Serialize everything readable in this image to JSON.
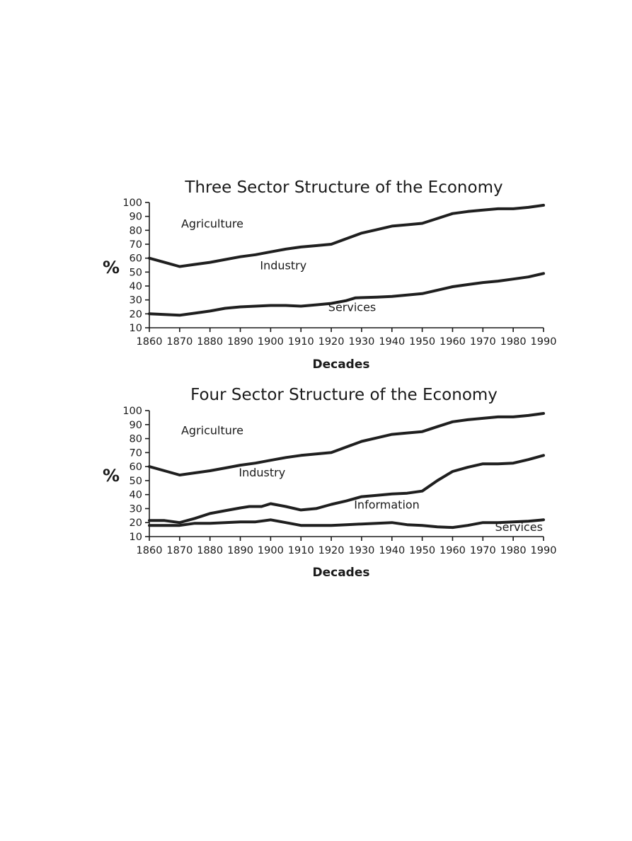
{
  "chart_data": [
    {
      "type": "line",
      "title": "Three Sector Structure of the Economy",
      "xlabel": "Decades",
      "ylabel": "%",
      "xlim": [
        1860,
        1990
      ],
      "ylim": [
        10,
        100
      ],
      "x_ticks": [
        "1860",
        "1870",
        "1880",
        "1890",
        "1900",
        "1910",
        "1920",
        "1930",
        "1940",
        "1950",
        "1960",
        "1970",
        "1980",
        "1990"
      ],
      "y_ticks": [
        "10",
        "20",
        "30",
        "40",
        "50",
        "60",
        "70",
        "80",
        "90",
        "100"
      ],
      "grid": false,
      "region_labels": [
        {
          "text": "Agriculture",
          "x": 1870.5,
          "y": 82
        },
        {
          "text": "Industry",
          "x": 1896.5,
          "y": 52
        },
        {
          "text": "Services",
          "x": 1919,
          "y": 22
        }
      ],
      "series": [
        {
          "values": [
            [
              1860,
              60
            ],
            [
              1865,
              57
            ],
            [
              1870,
              54
            ],
            [
              1875,
              55.5
            ],
            [
              1880,
              57
            ],
            [
              1885,
              59
            ],
            [
              1890,
              61
            ],
            [
              1895,
              62.5
            ],
            [
              1900,
              64.5
            ],
            [
              1905,
              66.5
            ],
            [
              1910,
              68
            ],
            [
              1915,
              69
            ],
            [
              1920,
              70
            ],
            [
              1925,
              74
            ],
            [
              1930,
              78
            ],
            [
              1935,
              80.5
            ],
            [
              1940,
              83
            ],
            [
              1945,
              84
            ],
            [
              1950,
              85
            ],
            [
              1955,
              88.5
            ],
            [
              1960,
              92
            ],
            [
              1965,
              93.5
            ],
            [
              1970,
              94.5
            ],
            [
              1975,
              95.5
            ],
            [
              1980,
              95.5
            ],
            [
              1985,
              96.5
            ],
            [
              1990,
              98
            ]
          ]
        },
        {
          "values": [
            [
              1860,
              20
            ],
            [
              1865,
              19.5
            ],
            [
              1870,
              19
            ],
            [
              1875,
              20.5
            ],
            [
              1880,
              22
            ],
            [
              1885,
              24
            ],
            [
              1890,
              25
            ],
            [
              1895,
              25.5
            ],
            [
              1900,
              26
            ],
            [
              1905,
              26
            ],
            [
              1910,
              25.5
            ],
            [
              1915,
              26.5
            ],
            [
              1920,
              27.5
            ],
            [
              1925,
              29.5
            ],
            [
              1928,
              31.5
            ],
            [
              1935,
              32
            ],
            [
              1940,
              32.5
            ],
            [
              1945,
              33.5
            ],
            [
              1950,
              34.5
            ],
            [
              1955,
              37
            ],
            [
              1960,
              39.5
            ],
            [
              1965,
              41
            ],
            [
              1970,
              42.5
            ],
            [
              1975,
              43.5
            ],
            [
              1980,
              45
            ],
            [
              1985,
              46.5
            ],
            [
              1990,
              49
            ]
          ]
        }
      ]
    },
    {
      "type": "line",
      "title": "Four Sector Structure of the Economy",
      "xlabel": "Decades",
      "ylabel": "%",
      "xlim": [
        1860,
        1990
      ],
      "ylim": [
        10,
        100
      ],
      "x_ticks": [
        "1860",
        "1870",
        "1880",
        "1890",
        "1900",
        "1910",
        "1920",
        "1930",
        "1940",
        "1950",
        "1960",
        "1970",
        "1980",
        "1990"
      ],
      "y_ticks": [
        "10",
        "20",
        "30",
        "40",
        "50",
        "60",
        "70",
        "80",
        "90",
        "100"
      ],
      "grid": false,
      "region_labels": [
        {
          "text": "Agriculture",
          "x": 1870.5,
          "y": 83
        },
        {
          "text": "Industry",
          "x": 1889.5,
          "y": 53
        },
        {
          "text": "Information",
          "x": 1927.5,
          "y": 30
        },
        {
          "text": "Services",
          "x": 1974,
          "y": 14
        }
      ],
      "series": [
        {
          "values": [
            [
              1860,
              60
            ],
            [
              1865,
              57
            ],
            [
              1870,
              54
            ],
            [
              1875,
              55.5
            ],
            [
              1880,
              57
            ],
            [
              1885,
              59
            ],
            [
              1890,
              61
            ],
            [
              1895,
              62.5
            ],
            [
              1900,
              64.5
            ],
            [
              1905,
              66.5
            ],
            [
              1910,
              68
            ],
            [
              1915,
              69
            ],
            [
              1920,
              70
            ],
            [
              1925,
              74
            ],
            [
              1930,
              78
            ],
            [
              1935,
              80.5
            ],
            [
              1940,
              83
            ],
            [
              1945,
              84
            ],
            [
              1950,
              85
            ],
            [
              1955,
              88.5
            ],
            [
              1960,
              92
            ],
            [
              1965,
              93.5
            ],
            [
              1970,
              94.5
            ],
            [
              1975,
              95.5
            ],
            [
              1980,
              95.5
            ],
            [
              1985,
              96.5
            ],
            [
              1990,
              98
            ]
          ]
        },
        {
          "values": [
            [
              1860,
              21.5
            ],
            [
              1865,
              21.5
            ],
            [
              1870,
              20
            ],
            [
              1875,
              23
            ],
            [
              1880,
              26.5
            ],
            [
              1885,
              28.5
            ],
            [
              1890,
              30.5
            ],
            [
              1893,
              31.5
            ],
            [
              1897,
              31.5
            ],
            [
              1900,
              33.5
            ],
            [
              1905,
              31.5
            ],
            [
              1910,
              29
            ],
            [
              1915,
              30
            ],
            [
              1920,
              33
            ],
            [
              1925,
              35.5
            ],
            [
              1930,
              38.5
            ],
            [
              1935,
              39.5
            ],
            [
              1940,
              40.5
            ],
            [
              1945,
              41
            ],
            [
              1950,
              42.5
            ],
            [
              1955,
              50
            ],
            [
              1960,
              56.5
            ],
            [
              1965,
              59.5
            ],
            [
              1970,
              62
            ],
            [
              1975,
              62
            ],
            [
              1980,
              62.5
            ],
            [
              1985,
              65
            ],
            [
              1990,
              68
            ]
          ]
        },
        {
          "values": [
            [
              1860,
              18
            ],
            [
              1865,
              18
            ],
            [
              1870,
              18
            ],
            [
              1875,
              19.5
            ],
            [
              1880,
              19.5
            ],
            [
              1885,
              20
            ],
            [
              1890,
              20.5
            ],
            [
              1895,
              20.5
            ],
            [
              1900,
              22
            ],
            [
              1905,
              20
            ],
            [
              1910,
              18
            ],
            [
              1915,
              18
            ],
            [
              1920,
              18
            ],
            [
              1925,
              18.5
            ],
            [
              1930,
              19
            ],
            [
              1935,
              19.5
            ],
            [
              1940,
              20
            ],
            [
              1945,
              18.5
            ],
            [
              1950,
              18
            ],
            [
              1955,
              17
            ],
            [
              1960,
              16.5
            ],
            [
              1965,
              18
            ],
            [
              1970,
              20
            ],
            [
              1975,
              20
            ],
            [
              1980,
              20.5
            ],
            [
              1985,
              21
            ],
            [
              1990,
              22
            ]
          ]
        }
      ]
    }
  ]
}
